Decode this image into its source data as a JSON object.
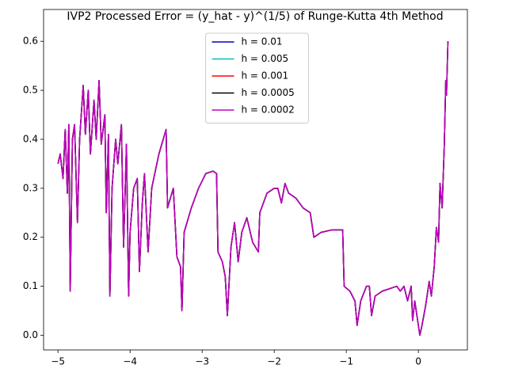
{
  "chart_data": {
    "type": "line",
    "title": "IVP2 Processed Error = (y_hat - y)^(1/5) of Runge-Kutta 4th Method",
    "x": [
      -5.0,
      -4.97,
      -4.93,
      -4.9,
      -4.87,
      -4.85,
      -4.83,
      -4.8,
      -4.77,
      -4.73,
      -4.7,
      -4.65,
      -4.62,
      -4.58,
      -4.55,
      -4.5,
      -4.47,
      -4.43,
      -4.4,
      -4.35,
      -4.33,
      -4.3,
      -4.28,
      -4.25,
      -4.2,
      -4.17,
      -4.12,
      -4.09,
      -4.05,
      -4.02,
      -4.0,
      -3.95,
      -3.9,
      -3.87,
      -3.83,
      -3.8,
      -3.75,
      -3.7,
      -3.6,
      -3.5,
      -3.48,
      -3.4,
      -3.35,
      -3.3,
      -3.28,
      -3.25,
      -3.15,
      -3.05,
      -2.95,
      -2.85,
      -2.8,
      -2.78,
      -2.72,
      -2.68,
      -2.65,
      -2.6,
      -2.55,
      -2.5,
      -2.45,
      -2.38,
      -2.3,
      -2.22,
      -2.2,
      -2.1,
      -2.0,
      -1.95,
      -1.9,
      -1.85,
      -1.8,
      -1.7,
      -1.6,
      -1.5,
      -1.45,
      -1.35,
      -1.2,
      -1.05,
      -1.03,
      -0.95,
      -0.88,
      -0.85,
      -0.8,
      -0.72,
      -0.68,
      -0.65,
      -0.6,
      -0.5,
      -0.4,
      -0.3,
      -0.25,
      -0.2,
      -0.15,
      -0.1,
      -0.08,
      -0.05,
      0.0,
      0.02,
      0.05,
      0.1,
      0.15,
      0.18,
      0.22,
      0.25,
      0.28,
      0.3,
      0.33,
      0.36,
      0.38,
      0.39,
      0.41
    ],
    "series": [
      {
        "name": "h = 0.01",
        "color": "#0000bf",
        "values": [
          0.35,
          0.37,
          0.32,
          0.42,
          0.29,
          0.43,
          0.09,
          0.4,
          0.43,
          0.23,
          0.4,
          0.51,
          0.41,
          0.5,
          0.37,
          0.48,
          0.4,
          0.52,
          0.39,
          0.45,
          0.25,
          0.41,
          0.08,
          0.3,
          0.4,
          0.35,
          0.43,
          0.18,
          0.39,
          0.08,
          0.21,
          0.3,
          0.32,
          0.13,
          0.27,
          0.33,
          0.17,
          0.3,
          0.37,
          0.42,
          0.26,
          0.3,
          0.16,
          0.14,
          0.05,
          0.21,
          0.26,
          0.3,
          0.33,
          0.335,
          0.33,
          0.17,
          0.15,
          0.12,
          0.04,
          0.18,
          0.23,
          0.15,
          0.21,
          0.24,
          0.19,
          0.17,
          0.25,
          0.29,
          0.3,
          0.3,
          0.27,
          0.31,
          0.29,
          0.28,
          0.26,
          0.25,
          0.2,
          0.21,
          0.215,
          0.215,
          0.1,
          0.09,
          0.07,
          0.02,
          0.07,
          0.1,
          0.1,
          0.04,
          0.08,
          0.09,
          0.095,
          0.1,
          0.09,
          0.1,
          0.07,
          0.1,
          0.03,
          0.07,
          0.02,
          0.0,
          0.02,
          0.06,
          0.11,
          0.08,
          0.14,
          0.22,
          0.19,
          0.31,
          0.26,
          0.39,
          0.52,
          0.49,
          0.6
        ]
      },
      {
        "name": "h = 0.005",
        "color": "#00bfbf",
        "values": [
          0.35,
          0.37,
          0.32,
          0.42,
          0.29,
          0.43,
          0.09,
          0.4,
          0.43,
          0.23,
          0.4,
          0.51,
          0.41,
          0.5,
          0.37,
          0.48,
          0.4,
          0.52,
          0.39,
          0.45,
          0.25,
          0.41,
          0.08,
          0.3,
          0.4,
          0.35,
          0.43,
          0.18,
          0.39,
          0.08,
          0.21,
          0.3,
          0.32,
          0.13,
          0.27,
          0.33,
          0.17,
          0.3,
          0.37,
          0.42,
          0.26,
          0.3,
          0.16,
          0.14,
          0.05,
          0.21,
          0.26,
          0.3,
          0.33,
          0.335,
          0.33,
          0.17,
          0.15,
          0.12,
          0.04,
          0.18,
          0.23,
          0.15,
          0.21,
          0.24,
          0.19,
          0.17,
          0.25,
          0.29,
          0.3,
          0.3,
          0.27,
          0.31,
          0.29,
          0.28,
          0.26,
          0.25,
          0.2,
          0.21,
          0.215,
          0.215,
          0.1,
          0.09,
          0.07,
          0.02,
          0.07,
          0.1,
          0.1,
          0.04,
          0.08,
          0.09,
          0.095,
          0.1,
          0.09,
          0.1,
          0.07,
          0.1,
          0.03,
          0.07,
          0.02,
          0.0,
          0.02,
          0.06,
          0.11,
          0.08,
          0.14,
          0.22,
          0.19,
          0.31,
          0.26,
          0.39,
          0.52,
          0.49,
          0.6
        ]
      },
      {
        "name": "h = 0.001",
        "color": "#ff0000",
        "values": [
          0.35,
          0.37,
          0.32,
          0.42,
          0.29,
          0.43,
          0.09,
          0.4,
          0.43,
          0.23,
          0.4,
          0.51,
          0.41,
          0.5,
          0.37,
          0.48,
          0.4,
          0.52,
          0.39,
          0.45,
          0.25,
          0.41,
          0.08,
          0.3,
          0.4,
          0.35,
          0.43,
          0.18,
          0.39,
          0.08,
          0.21,
          0.3,
          0.32,
          0.13,
          0.27,
          0.33,
          0.17,
          0.3,
          0.37,
          0.42,
          0.26,
          0.3,
          0.16,
          0.14,
          0.05,
          0.21,
          0.26,
          0.3,
          0.33,
          0.335,
          0.33,
          0.17,
          0.15,
          0.12,
          0.04,
          0.18,
          0.23,
          0.15,
          0.21,
          0.24,
          0.19,
          0.17,
          0.25,
          0.29,
          0.3,
          0.3,
          0.27,
          0.31,
          0.29,
          0.28,
          0.26,
          0.25,
          0.2,
          0.21,
          0.215,
          0.215,
          0.1,
          0.09,
          0.07,
          0.02,
          0.07,
          0.1,
          0.1,
          0.04,
          0.08,
          0.09,
          0.095,
          0.1,
          0.09,
          0.1,
          0.07,
          0.1,
          0.03,
          0.07,
          0.02,
          0.0,
          0.02,
          0.06,
          0.11,
          0.08,
          0.14,
          0.22,
          0.19,
          0.31,
          0.26,
          0.39,
          0.52,
          0.49,
          0.6
        ]
      },
      {
        "name": "h = 0.0005",
        "color": "#000000",
        "values": [
          0.35,
          0.37,
          0.32,
          0.42,
          0.29,
          0.43,
          0.09,
          0.4,
          0.43,
          0.23,
          0.4,
          0.51,
          0.41,
          0.5,
          0.37,
          0.48,
          0.4,
          0.52,
          0.39,
          0.45,
          0.25,
          0.41,
          0.08,
          0.3,
          0.4,
          0.35,
          0.43,
          0.18,
          0.39,
          0.08,
          0.21,
          0.3,
          0.32,
          0.13,
          0.27,
          0.33,
          0.17,
          0.3,
          0.37,
          0.42,
          0.26,
          0.3,
          0.16,
          0.14,
          0.05,
          0.21,
          0.26,
          0.3,
          0.33,
          0.335,
          0.33,
          0.17,
          0.15,
          0.12,
          0.04,
          0.18,
          0.23,
          0.15,
          0.21,
          0.24,
          0.19,
          0.17,
          0.25,
          0.29,
          0.3,
          0.3,
          0.27,
          0.31,
          0.29,
          0.28,
          0.26,
          0.25,
          0.2,
          0.21,
          0.215,
          0.215,
          0.1,
          0.09,
          0.07,
          0.02,
          0.07,
          0.1,
          0.1,
          0.04,
          0.08,
          0.09,
          0.095,
          0.1,
          0.09,
          0.1,
          0.07,
          0.1,
          0.03,
          0.07,
          0.02,
          0.0,
          0.02,
          0.06,
          0.11,
          0.08,
          0.14,
          0.22,
          0.19,
          0.31,
          0.26,
          0.39,
          0.52,
          0.49,
          0.6
        ]
      },
      {
        "name": "h = 0.0002",
        "color": "#bf00bf",
        "values": [
          0.35,
          0.37,
          0.32,
          0.42,
          0.29,
          0.43,
          0.09,
          0.4,
          0.43,
          0.23,
          0.4,
          0.51,
          0.41,
          0.5,
          0.37,
          0.48,
          0.4,
          0.52,
          0.39,
          0.45,
          0.25,
          0.41,
          0.08,
          0.3,
          0.4,
          0.35,
          0.43,
          0.18,
          0.39,
          0.08,
          0.21,
          0.3,
          0.32,
          0.13,
          0.27,
          0.33,
          0.17,
          0.3,
          0.37,
          0.42,
          0.26,
          0.3,
          0.16,
          0.14,
          0.05,
          0.21,
          0.26,
          0.3,
          0.33,
          0.335,
          0.33,
          0.17,
          0.15,
          0.12,
          0.04,
          0.18,
          0.23,
          0.15,
          0.21,
          0.24,
          0.19,
          0.17,
          0.25,
          0.29,
          0.3,
          0.3,
          0.27,
          0.31,
          0.29,
          0.28,
          0.26,
          0.25,
          0.2,
          0.21,
          0.215,
          0.215,
          0.1,
          0.09,
          0.07,
          0.02,
          0.07,
          0.1,
          0.1,
          0.04,
          0.08,
          0.09,
          0.095,
          0.1,
          0.09,
          0.1,
          0.07,
          0.1,
          0.03,
          0.07,
          0.02,
          0.0,
          0.02,
          0.06,
          0.11,
          0.08,
          0.14,
          0.22,
          0.19,
          0.31,
          0.26,
          0.39,
          0.52,
          0.49,
          0.6
        ]
      }
    ],
    "xlim": [
      -5.2,
      0.68
    ],
    "ylim": [
      -0.03,
      0.665
    ],
    "xticks": [
      {
        "value": -5,
        "label": "−5"
      },
      {
        "value": -4,
        "label": "−4"
      },
      {
        "value": -3,
        "label": "−3"
      },
      {
        "value": -2,
        "label": "−2"
      },
      {
        "value": -1,
        "label": "−1"
      },
      0
    ],
    "yticks": [
      {
        "value": 0,
        "label": "0.0"
      },
      0.1,
      0.2,
      0.3,
      0.4,
      0.5,
      0.6
    ],
    "grid": false,
    "legend": "upper center"
  }
}
